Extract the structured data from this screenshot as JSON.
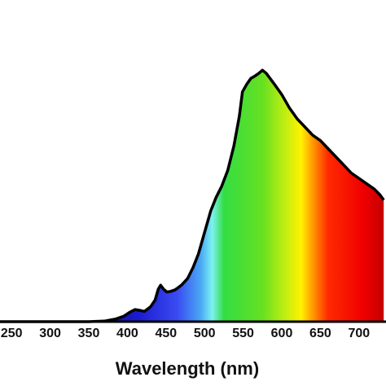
{
  "chart_data": {
    "type": "area",
    "title": "",
    "xlabel": "Wavelength (nm)",
    "ylabel": "",
    "xlim": [
      235,
      735
    ],
    "ylim": [
      0,
      1.0
    ],
    "xticks": [
      250,
      300,
      350,
      400,
      450,
      500,
      550,
      600,
      650,
      700
    ],
    "xtick_labels": [
      "250",
      "300",
      "350",
      "400",
      "450",
      "500",
      "550",
      "600",
      "650",
      "700"
    ],
    "grid": false,
    "fill": "visible-spectrum gradient",
    "outline_color": "#000000",
    "series": [
      {
        "x": [
          235,
          250,
          300,
          350,
          370,
          385,
          395,
          403,
          410,
          416,
          422,
          430,
          436,
          440,
          443,
          447,
          451,
          456,
          462,
          470,
          478,
          485,
          492,
          500,
          508,
          515,
          522,
          530,
          538,
          545,
          549,
          552,
          555,
          560,
          565,
          570,
          575,
          580,
          590,
          600,
          610,
          620,
          630,
          640,
          650,
          660,
          670,
          680,
          690,
          700,
          710,
          720,
          727,
          732
        ],
        "y": [
          0,
          0,
          0,
          0,
          0.002,
          0.01,
          0.02,
          0.035,
          0.045,
          0.042,
          0.038,
          0.055,
          0.08,
          0.12,
          0.135,
          0.12,
          0.11,
          0.112,
          0.118,
          0.135,
          0.16,
          0.2,
          0.25,
          0.33,
          0.41,
          0.46,
          0.5,
          0.56,
          0.65,
          0.76,
          0.85,
          0.865,
          0.88,
          0.9,
          0.908,
          0.918,
          0.93,
          0.918,
          0.88,
          0.84,
          0.79,
          0.75,
          0.72,
          0.69,
          0.67,
          0.64,
          0.61,
          0.58,
          0.55,
          0.53,
          0.51,
          0.49,
          0.47,
          0.45
        ]
      }
    ]
  }
}
